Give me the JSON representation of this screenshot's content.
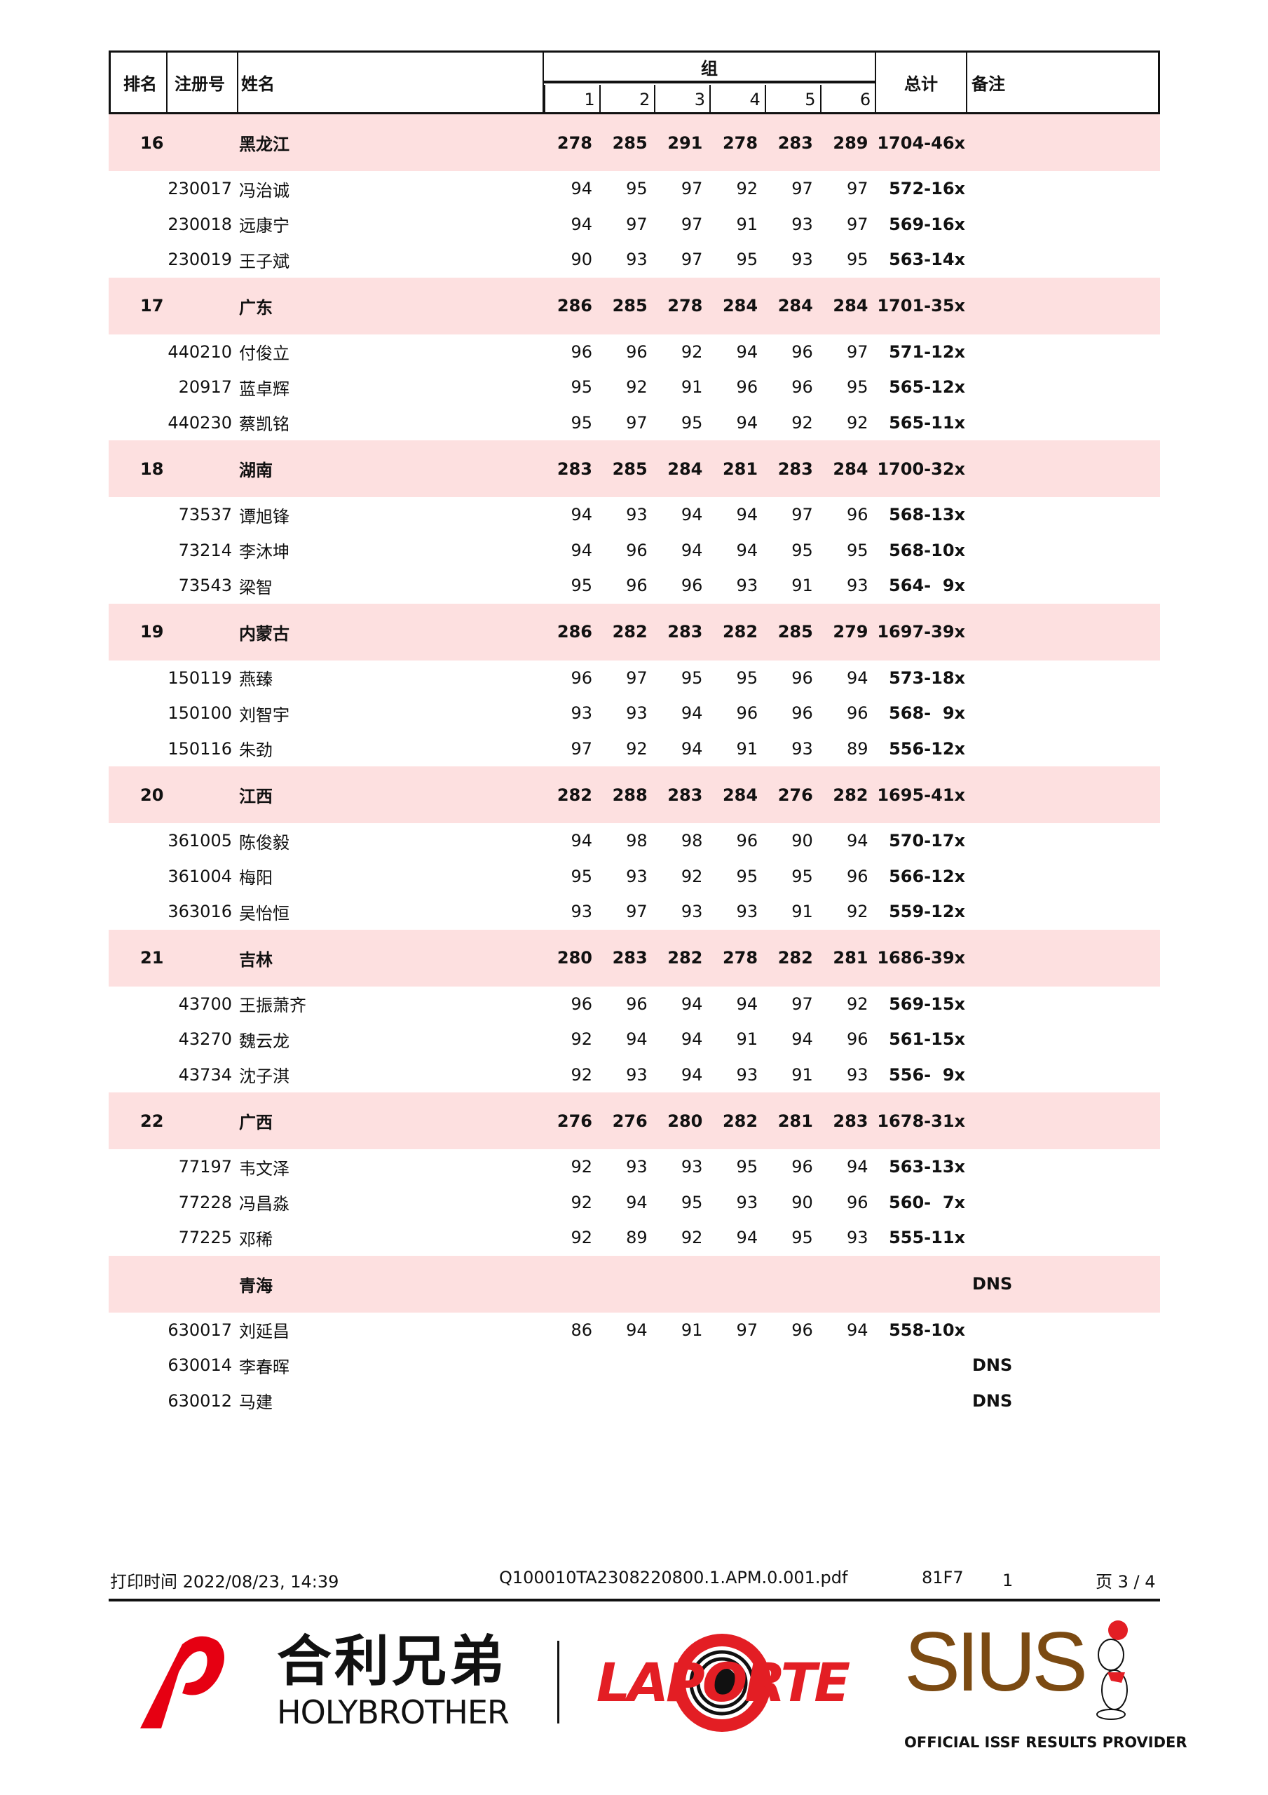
{
  "header": {
    "rank": "排名",
    "reg": "注册号",
    "name": "姓名",
    "group": "组",
    "series": [
      "1",
      "2",
      "3",
      "4",
      "5",
      "6"
    ],
    "total": "总计",
    "remarks": "备注"
  },
  "teams": [
    {
      "rank": "16",
      "name": "黑龙江",
      "scores": [
        "278",
        "285",
        "291",
        "278",
        "283",
        "289"
      ],
      "total": "1704-46x",
      "remark": "",
      "members": [
        {
          "id": "230017",
          "name": "冯治诚",
          "scores": [
            "94",
            "95",
            "97",
            "92",
            "97",
            "97"
          ],
          "total": "572-16x",
          "remark": ""
        },
        {
          "id": "230018",
          "name": "远康宁",
          "scores": [
            "94",
            "97",
            "97",
            "91",
            "93",
            "97"
          ],
          "total": "569-16x",
          "remark": ""
        },
        {
          "id": "230019",
          "name": "王子斌",
          "scores": [
            "90",
            "93",
            "97",
            "95",
            "93",
            "95"
          ],
          "total": "563-14x",
          "remark": ""
        }
      ]
    },
    {
      "rank": "17",
      "name": "广东",
      "scores": [
        "286",
        "285",
        "278",
        "284",
        "284",
        "284"
      ],
      "total": "1701-35x",
      "remark": "",
      "members": [
        {
          "id": "440210",
          "name": "付俊立",
          "scores": [
            "96",
            "96",
            "92",
            "94",
            "96",
            "97"
          ],
          "total": "571-12x",
          "remark": ""
        },
        {
          "id": "20917",
          "name": "蓝卓辉",
          "scores": [
            "95",
            "92",
            "91",
            "96",
            "96",
            "95"
          ],
          "total": "565-12x",
          "remark": ""
        },
        {
          "id": "440230",
          "name": "蔡凯铭",
          "scores": [
            "95",
            "97",
            "95",
            "94",
            "92",
            "92"
          ],
          "total": "565-11x",
          "remark": ""
        }
      ]
    },
    {
      "rank": "18",
      "name": "湖南",
      "scores": [
        "283",
        "285",
        "284",
        "281",
        "283",
        "284"
      ],
      "total": "1700-32x",
      "remark": "",
      "members": [
        {
          "id": "73537",
          "name": "谭旭锋",
          "scores": [
            "94",
            "93",
            "94",
            "94",
            "97",
            "96"
          ],
          "total": "568-13x",
          "remark": ""
        },
        {
          "id": "73214",
          "name": "李沐坤",
          "scores": [
            "94",
            "96",
            "94",
            "94",
            "95",
            "95"
          ],
          "total": "568-10x",
          "remark": ""
        },
        {
          "id": "73543",
          "name": "梁智",
          "scores": [
            "95",
            "96",
            "96",
            "93",
            "91",
            "93"
          ],
          "total": "564-  9x",
          "remark": ""
        }
      ]
    },
    {
      "rank": "19",
      "name": "内蒙古",
      "scores": [
        "286",
        "282",
        "283",
        "282",
        "285",
        "279"
      ],
      "total": "1697-39x",
      "remark": "",
      "members": [
        {
          "id": "150119",
          "name": "燕臻",
          "scores": [
            "96",
            "97",
            "95",
            "95",
            "96",
            "94"
          ],
          "total": "573-18x",
          "remark": ""
        },
        {
          "id": "150100",
          "name": "刘智宇",
          "scores": [
            "93",
            "93",
            "94",
            "96",
            "96",
            "96"
          ],
          "total": "568-  9x",
          "remark": ""
        },
        {
          "id": "150116",
          "name": "朱劲",
          "scores": [
            "97",
            "92",
            "94",
            "91",
            "93",
            "89"
          ],
          "total": "556-12x",
          "remark": ""
        }
      ]
    },
    {
      "rank": "20",
      "name": "江西",
      "scores": [
        "282",
        "288",
        "283",
        "284",
        "276",
        "282"
      ],
      "total": "1695-41x",
      "remark": "",
      "members": [
        {
          "id": "361005",
          "name": "陈俊毅",
          "scores": [
            "94",
            "98",
            "98",
            "96",
            "90",
            "94"
          ],
          "total": "570-17x",
          "remark": ""
        },
        {
          "id": "361004",
          "name": "梅阳",
          "scores": [
            "95",
            "93",
            "92",
            "95",
            "95",
            "96"
          ],
          "total": "566-12x",
          "remark": ""
        },
        {
          "id": "363016",
          "name": "吴怡恒",
          "scores": [
            "93",
            "97",
            "93",
            "93",
            "91",
            "92"
          ],
          "total": "559-12x",
          "remark": ""
        }
      ]
    },
    {
      "rank": "21",
      "name": "吉林",
      "scores": [
        "280",
        "283",
        "282",
        "278",
        "282",
        "281"
      ],
      "total": "1686-39x",
      "remark": "",
      "members": [
        {
          "id": "43700",
          "name": "王振萧齐",
          "scores": [
            "96",
            "96",
            "94",
            "94",
            "97",
            "92"
          ],
          "total": "569-15x",
          "remark": ""
        },
        {
          "id": "43270",
          "name": "魏云龙",
          "scores": [
            "92",
            "94",
            "94",
            "91",
            "94",
            "96"
          ],
          "total": "561-15x",
          "remark": ""
        },
        {
          "id": "43734",
          "name": "沈子淇",
          "scores": [
            "92",
            "93",
            "94",
            "93",
            "91",
            "93"
          ],
          "total": "556-  9x",
          "remark": ""
        }
      ]
    },
    {
      "rank": "22",
      "name": "广西",
      "scores": [
        "276",
        "276",
        "280",
        "282",
        "281",
        "283"
      ],
      "total": "1678-31x",
      "remark": "",
      "members": [
        {
          "id": "77197",
          "name": "韦文泽",
          "scores": [
            "92",
            "93",
            "93",
            "95",
            "96",
            "94"
          ],
          "total": "563-13x",
          "remark": ""
        },
        {
          "id": "77228",
          "name": "冯昌淼",
          "scores": [
            "92",
            "94",
            "95",
            "93",
            "90",
            "96"
          ],
          "total": "560-  7x",
          "remark": ""
        },
        {
          "id": "77225",
          "name": "邓稀",
          "scores": [
            "92",
            "89",
            "92",
            "94",
            "95",
            "93"
          ],
          "total": "555-11x",
          "remark": ""
        }
      ]
    },
    {
      "rank": "",
      "name": "青海",
      "scores": [
        "",
        "",
        "",
        "",
        "",
        ""
      ],
      "total": "",
      "remark": "DNS",
      "members": [
        {
          "id": "630017",
          "name": "刘延昌",
          "scores": [
            "86",
            "94",
            "91",
            "97",
            "96",
            "94"
          ],
          "total": "558-10x",
          "remark": ""
        },
        {
          "id": "630014",
          "name": "李春晖",
          "scores": [
            "",
            "",
            "",
            "",
            "",
            ""
          ],
          "total": "",
          "remark": "DNS"
        },
        {
          "id": "630012",
          "name": "马建",
          "scores": [
            "",
            "",
            "",
            "",
            "",
            ""
          ],
          "total": "",
          "remark": "DNS"
        }
      ]
    }
  ],
  "footer": {
    "print_time": "打印时间 2022/08/23, 14:39",
    "file": "Q100010TA2308220800.1.APM.0.001.pdf",
    "code": "81F7",
    "num": "1",
    "page": "页 3 / 4"
  },
  "logos": {
    "holybrother_cn": "合利兄弟",
    "holybrother_en": "HOLYBROTHER",
    "laporte": "LAPORTE",
    "sius": "SIUS",
    "sius_tagline": "OFFICIAL ISSF RESULTS PROVIDER"
  },
  "colors": {
    "team_row_bg": "#fde0e0",
    "holybrother_red": "#e60012",
    "laporte_red": "#e31e24",
    "sius_brown": "#7b4a12"
  }
}
